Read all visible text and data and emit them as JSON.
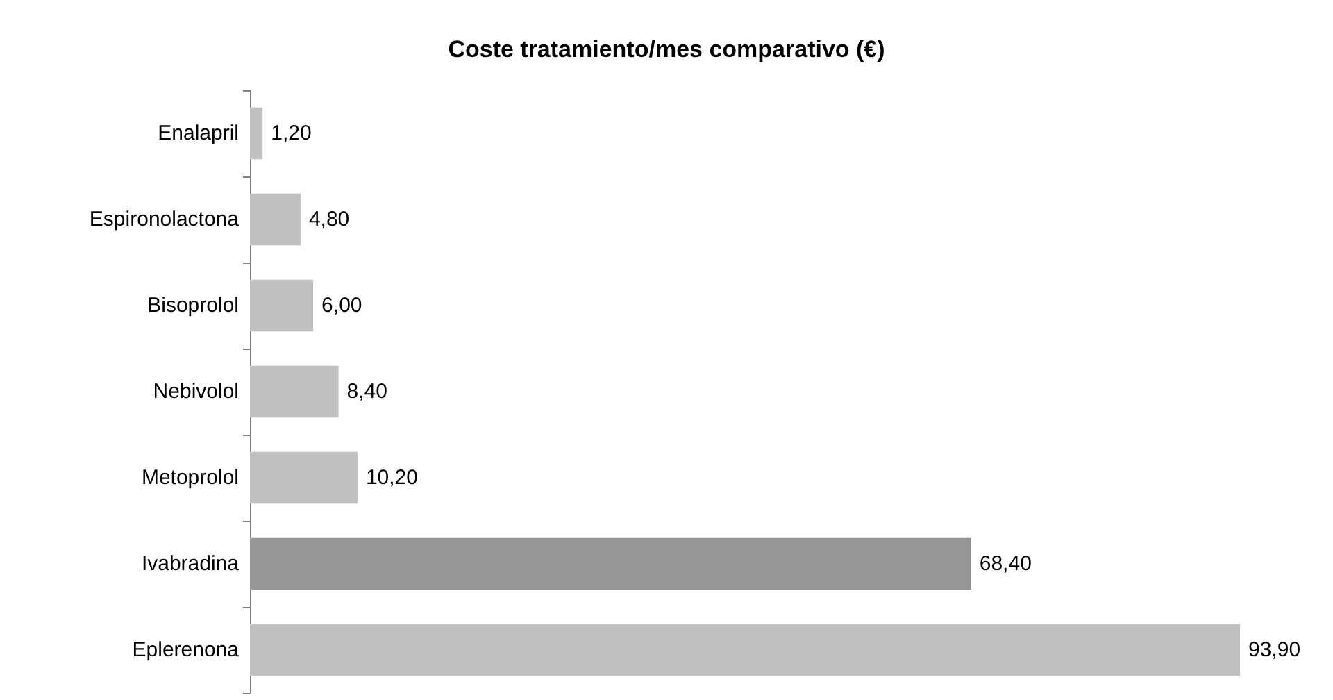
{
  "chart_data": {
    "type": "bar",
    "orientation": "horizontal",
    "title": "Coste tratamiento/mes comparativo (€)",
    "categories": [
      "Enalapril",
      "Espironolactona",
      "Bisoprolol",
      "Nebivolol",
      "Metoprolol",
      "Ivabradina",
      "Eplerenona"
    ],
    "values": [
      1.2,
      4.8,
      6.0,
      8.4,
      10.2,
      68.4,
      93.9
    ],
    "value_labels": [
      "1,20",
      "4,80",
      "6,00",
      "8,40",
      "10,20",
      "68,40",
      "93,90"
    ],
    "colors": [
      "#c0c0c0",
      "#c0c0c0",
      "#c0c0c0",
      "#c0c0c0",
      "#c0c0c0",
      "#969696",
      "#c0c0c0"
    ]
  }
}
